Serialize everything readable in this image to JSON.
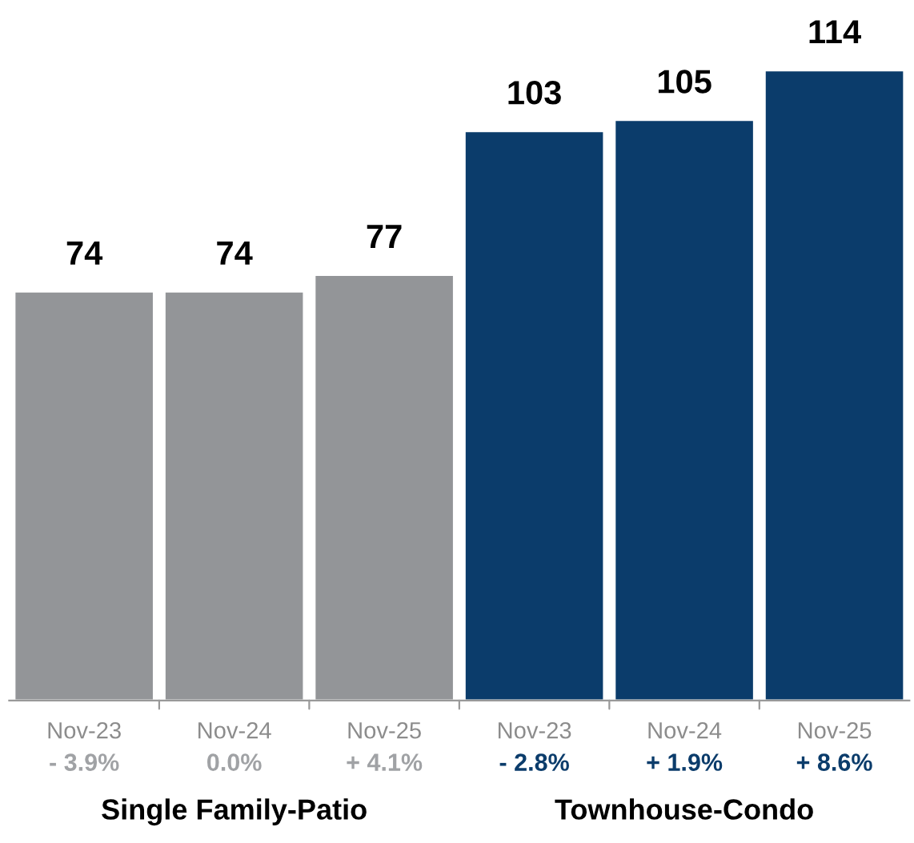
{
  "chart_data": {
    "type": "bar",
    "categories": [
      "Nov-23",
      "Nov-24",
      "Nov-25",
      "Nov-23",
      "Nov-24",
      "Nov-25"
    ],
    "series": [
      {
        "color": "#939598",
        "values": [
          74,
          74,
          77,
          null,
          null,
          null
        ]
      },
      {
        "color": "#0b3c6b",
        "values": [
          null,
          null,
          null,
          103,
          105,
          114
        ]
      }
    ],
    "data_labels": true,
    "annotations": [
      "- 3.9%",
      "0.0%",
      "+ 4.1%",
      "- 2.8%",
      "+ 1.9%",
      "+ 8.6%",
      "Single Family-Patio",
      "Townhouse-Condo"
    ],
    "tick_labels": "x"
  }
}
